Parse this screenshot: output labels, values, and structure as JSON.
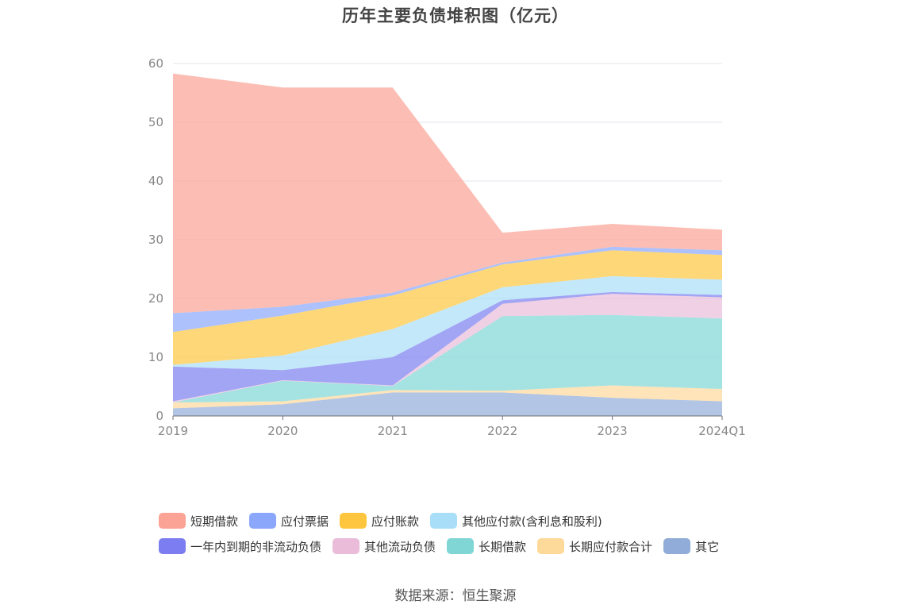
{
  "chart_data": {
    "type": "area",
    "stacked": true,
    "title": "历年主要负债堆积图（亿元）",
    "categories": [
      "2019",
      "2020",
      "2021",
      "2022",
      "2023",
      "2024Q1"
    ],
    "ylim": [
      0,
      60
    ],
    "yticks": [
      "0",
      "10",
      "20",
      "30",
      "40",
      "50",
      "60"
    ],
    "grid": true,
    "legend_position": "bottom",
    "series": [
      {
        "name": "其它",
        "color": "#91acd8",
        "values": [
          1.3,
          2.0,
          4.0,
          4.0,
          3.1,
          2.5
        ]
      },
      {
        "name": "长期应付款合计",
        "color": "#fdd99a",
        "values": [
          1.0,
          0.5,
          0.4,
          0.3,
          2.1,
          2.1
        ]
      },
      {
        "name": "长期借款",
        "color": "#7fd6d5",
        "values": [
          0.0,
          3.5,
          0.7,
          12.7,
          12.0,
          12.0
        ]
      },
      {
        "name": "其他流动负债",
        "color": "#eabcda",
        "values": [
          0.2,
          0.1,
          0.1,
          2.1,
          3.6,
          3.6
        ]
      },
      {
        "name": "一年内到期的非流动负债",
        "color": "#7b7df0",
        "values": [
          5.9,
          1.7,
          4.8,
          0.6,
          0.3,
          0.4
        ]
      },
      {
        "name": "其他应付款(含利息和股利)",
        "color": "#a9def8",
        "values": [
          0.3,
          2.5,
          4.8,
          2.2,
          2.7,
          2.6
        ]
      },
      {
        "name": "应付账款",
        "color": "#fec63e",
        "values": [
          5.6,
          6.8,
          5.7,
          3.9,
          4.4,
          4.2
        ]
      },
      {
        "name": "应付票据",
        "color": "#8aa7fb",
        "values": [
          3.2,
          1.5,
          0.5,
          0.3,
          0.6,
          0.8
        ]
      },
      {
        "name": "短期借款",
        "color": "#fba394",
        "values": [
          40.8,
          37.3,
          34.9,
          5.1,
          3.9,
          3.5
        ]
      }
    ]
  },
  "legend": [
    {
      "label": "短期借款",
      "color": "#fba394"
    },
    {
      "label": "应付票据",
      "color": "#8aa7fb"
    },
    {
      "label": "应付账款",
      "color": "#fec63e"
    },
    {
      "label": "其他应付款(含利息和股利)",
      "color": "#a9def8"
    },
    {
      "label": "一年内到期的非流动负债",
      "color": "#7b7df0"
    },
    {
      "label": "其他流动负债",
      "color": "#eabcda"
    },
    {
      "label": "长期借款",
      "color": "#7fd6d5"
    },
    {
      "label": "长期应付款合计",
      "color": "#fdd99a"
    },
    {
      "label": "其它",
      "color": "#91acd8"
    }
  ],
  "source": "数据来源：恒生聚源"
}
